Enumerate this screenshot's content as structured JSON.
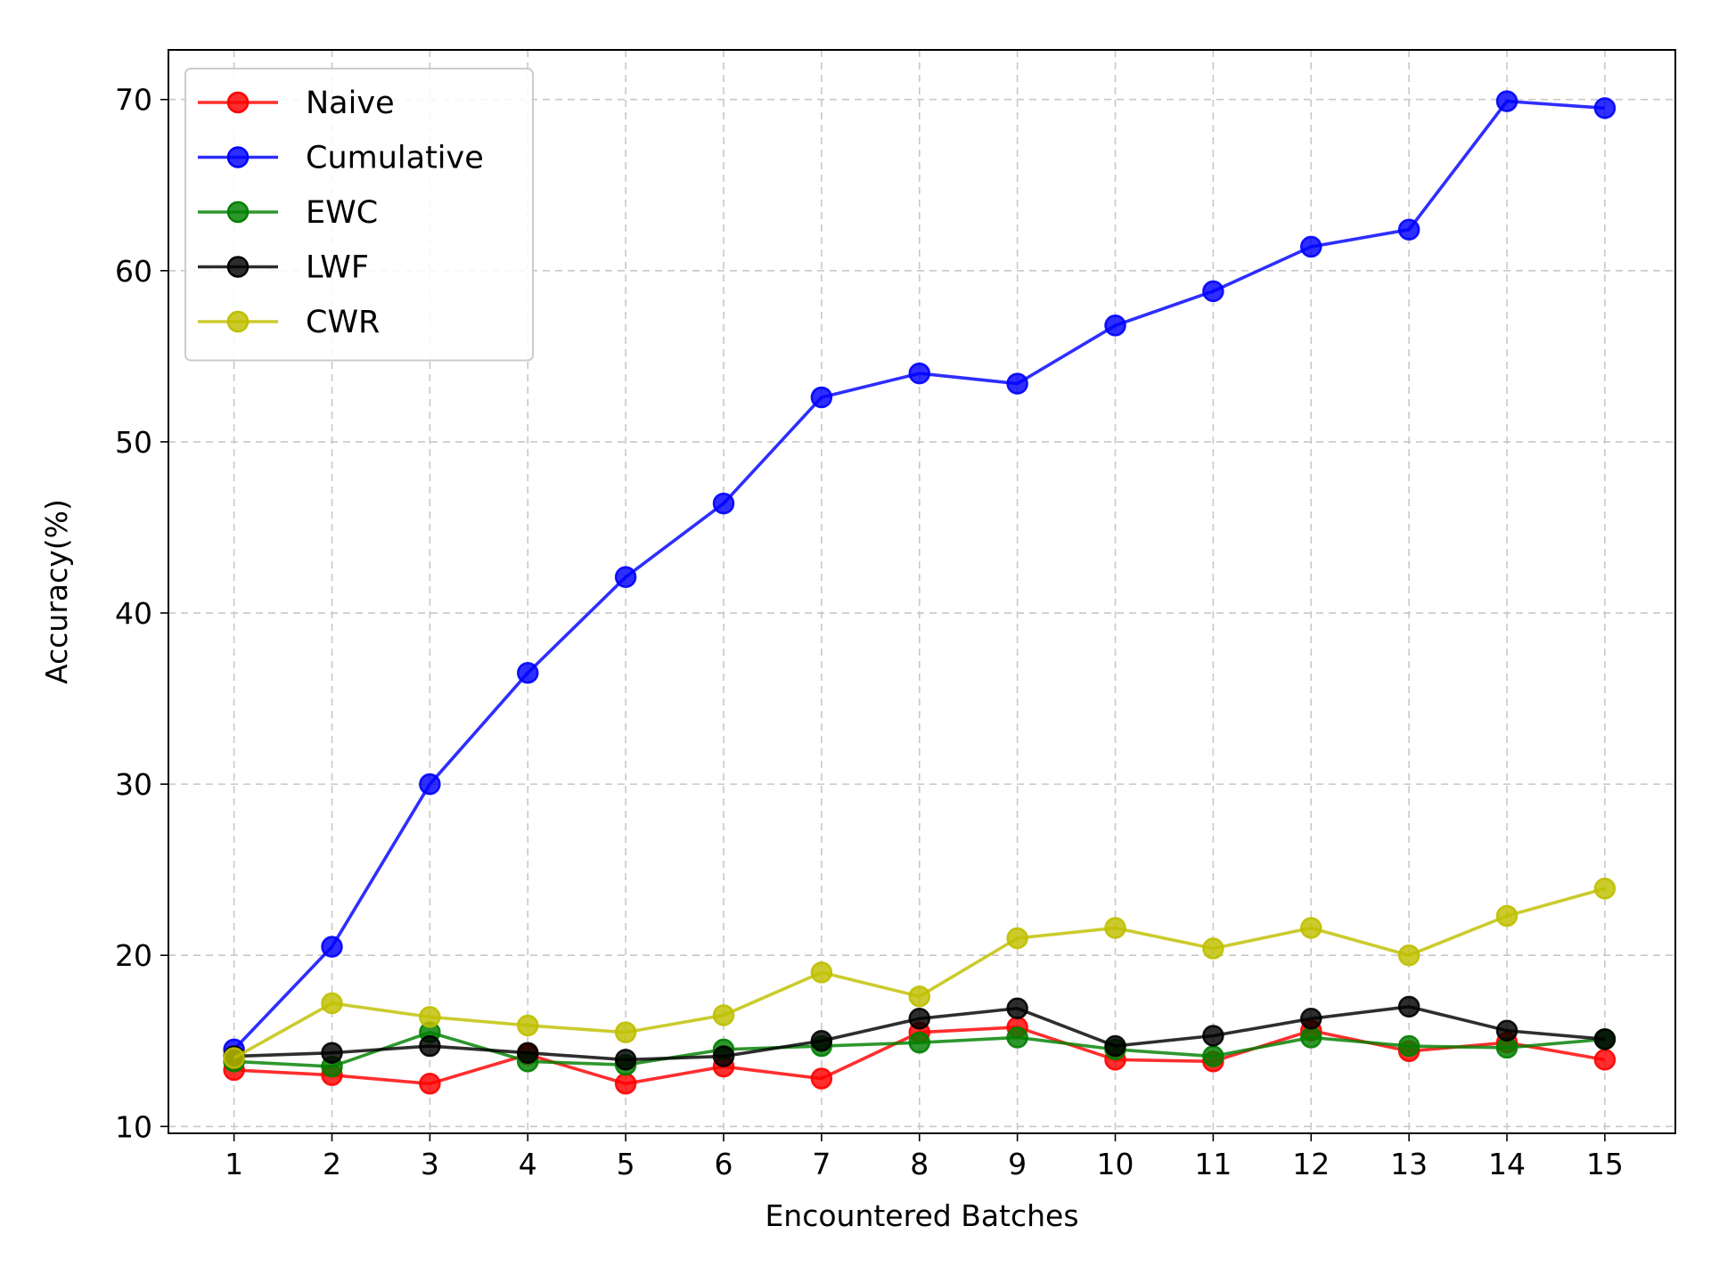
{
  "chart_data": {
    "type": "line",
    "title": "",
    "xlabel": "Encountered Batches",
    "ylabel": "Accuracy(%)",
    "x": [
      1,
      2,
      3,
      4,
      5,
      6,
      7,
      8,
      9,
      10,
      11,
      12,
      13,
      14,
      15
    ],
    "x_ticks": [
      "1",
      "2",
      "3",
      "4",
      "5",
      "6",
      "7",
      "8",
      "9",
      "10",
      "11",
      "12",
      "13",
      "14",
      "15"
    ],
    "xlim": [
      0.33,
      15.72
    ],
    "ylim": [
      9.6,
      72.9
    ],
    "y_ticks": [
      10,
      20,
      30,
      40,
      50,
      60,
      70
    ],
    "grid": true,
    "legend_position": "top-left",
    "series": [
      {
        "name": "Naive",
        "color": "#ff0000",
        "values": [
          13.3,
          13.0,
          12.5,
          14.2,
          12.5,
          13.5,
          12.8,
          15.5,
          15.8,
          13.9,
          13.8,
          15.6,
          14.4,
          14.9,
          13.9
        ]
      },
      {
        "name": "Cumulative",
        "color": "#0000ff",
        "values": [
          14.5,
          20.5,
          30.0,
          36.5,
          42.1,
          46.4,
          52.6,
          54.0,
          53.4,
          56.8,
          58.8,
          61.4,
          62.4,
          69.9,
          69.5
        ]
      },
      {
        "name": "EWC",
        "color": "#008000",
        "values": [
          13.8,
          13.5,
          15.5,
          13.8,
          13.6,
          14.5,
          14.7,
          14.9,
          15.2,
          14.5,
          14.1,
          15.2,
          14.7,
          14.6,
          15.1
        ]
      },
      {
        "name": "LWF",
        "color": "#000000",
        "values": [
          14.1,
          14.3,
          14.7,
          14.3,
          13.9,
          14.1,
          15.0,
          16.3,
          16.9,
          14.7,
          15.3,
          16.3,
          17.0,
          15.6,
          15.1
        ]
      },
      {
        "name": "CWR",
        "color": "#bfbf00",
        "values": [
          14.0,
          17.2,
          16.4,
          15.9,
          15.5,
          16.5,
          19.0,
          17.6,
          21.0,
          21.6,
          20.4,
          21.6,
          20.0,
          22.3,
          23.9
        ]
      }
    ]
  }
}
